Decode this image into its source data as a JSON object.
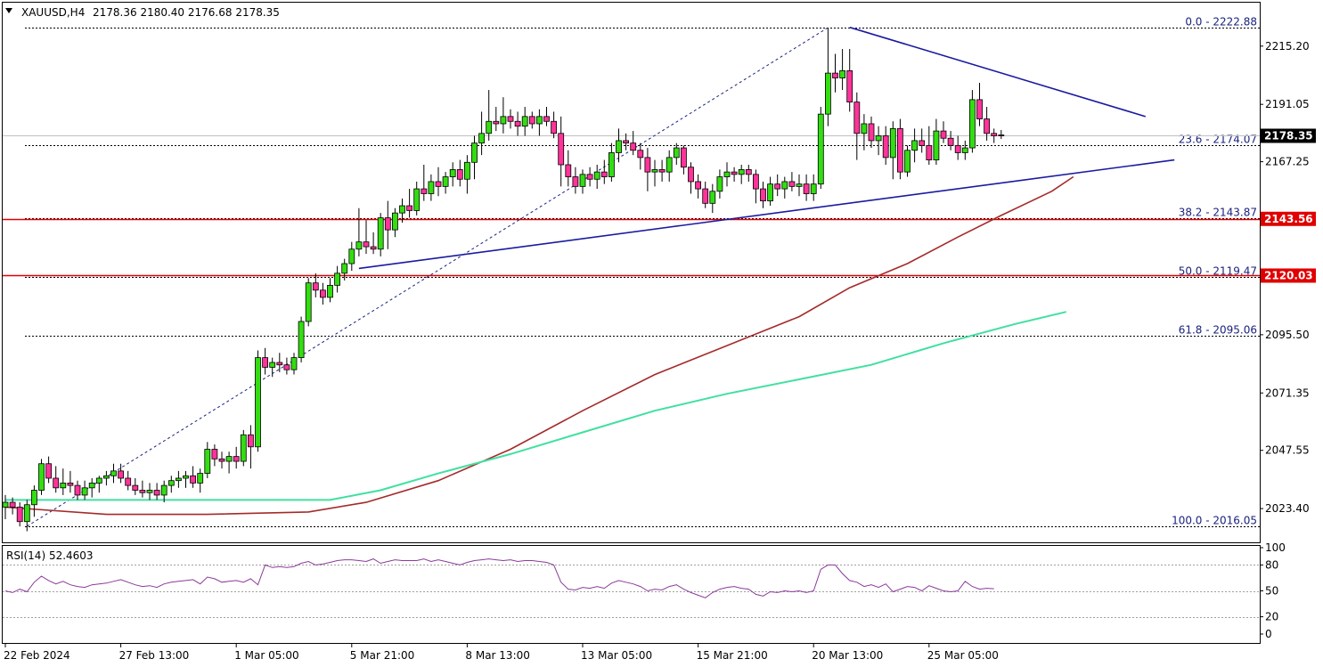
{
  "header": {
    "symbol": "XAUUSD,H4",
    "ohlc": "2178.36 2180.40 2176.68 2178.35",
    "dropdown_icon": "triangle-down-icon"
  },
  "chart_data": {
    "type": "candlestick",
    "symbol": "XAUUSD",
    "timeframe": "H4",
    "ylim": [
      2010,
      2232
    ],
    "y_ticks": [
      "2215.20",
      "2191.05",
      "2167.25",
      "2095.50",
      "2071.35",
      "2047.55",
      "2023.40"
    ],
    "x_ticks": [
      "22 Feb 2024",
      "27 Feb 13:00",
      "1 Mar 05:00",
      "5 Mar 21:00",
      "8 Mar 13:00",
      "13 Mar 05:00",
      "15 Mar 21:00",
      "20 Mar 13:00",
      "25 Mar 05:00"
    ],
    "current_price": "2178.35",
    "current_value": 2178.35,
    "resistance_levels": [
      {
        "label": "2143.56",
        "value": 2143.56
      },
      {
        "label": "2120.03",
        "value": 2120.03
      }
    ],
    "fib_levels": [
      {
        "label": "0.0 - 2222.88",
        "value": 2222.88
      },
      {
        "label": "23.6 - 2174.07",
        "value": 2174.07
      },
      {
        "label": "38.2 - 2143.87",
        "value": 2143.87
      },
      {
        "label": "50.0 - 2119.47",
        "value": 2119.47
      },
      {
        "label": "61.8 - 2095.06",
        "value": 2095.06
      },
      {
        "label": "100.0 - 2016.05",
        "value": 2016.05
      }
    ],
    "candles": [
      [
        2024,
        2029,
        2019,
        2026
      ],
      [
        2026,
        2028,
        2021,
        2024
      ],
      [
        2024,
        2026,
        2016,
        2018
      ],
      [
        2018,
        2027,
        2014,
        2025
      ],
      [
        2025,
        2033,
        2020,
        2031
      ],
      [
        2031,
        2044,
        2029,
        2042
      ],
      [
        2042,
        2045,
        2034,
        2036
      ],
      [
        2036,
        2041,
        2030,
        2032
      ],
      [
        2032,
        2040,
        2029,
        2034
      ],
      [
        2034,
        2039,
        2030,
        2033
      ],
      [
        2033,
        2035,
        2027,
        2029
      ],
      [
        2029,
        2035,
        2027,
        2032
      ],
      [
        2032,
        2036,
        2028,
        2034
      ],
      [
        2034,
        2037,
        2030,
        2036
      ],
      [
        2036,
        2039,
        2033,
        2037
      ],
      [
        2037,
        2042,
        2034,
        2039
      ],
      [
        2039,
        2042,
        2034,
        2036
      ],
      [
        2036,
        2039,
        2031,
        2033
      ],
      [
        2033,
        2036,
        2029,
        2031
      ],
      [
        2031,
        2035,
        2028,
        2030
      ],
      [
        2030,
        2034,
        2027,
        2031
      ],
      [
        2031,
        2034,
        2027,
        2029
      ],
      [
        2029,
        2035,
        2026,
        2033
      ],
      [
        2033,
        2037,
        2030,
        2035
      ],
      [
        2035,
        2039,
        2032,
        2036
      ],
      [
        2036,
        2039,
        2032,
        2037
      ],
      [
        2037,
        2041,
        2032,
        2034
      ],
      [
        2034,
        2040,
        2030,
        2038
      ],
      [
        2038,
        2051,
        2036,
        2048
      ],
      [
        2048,
        2050,
        2041,
        2044
      ],
      [
        2044,
        2047,
        2040,
        2043
      ],
      [
        2043,
        2047,
        2038,
        2045
      ],
      [
        2045,
        2049,
        2040,
        2043
      ],
      [
        2043,
        2056,
        2041,
        2054
      ],
      [
        2054,
        2058,
        2040,
        2049
      ],
      [
        2049,
        2089,
        2047,
        2086
      ],
      [
        2086,
        2090,
        2079,
        2082
      ],
      [
        2082,
        2086,
        2078,
        2084
      ],
      [
        2084,
        2088,
        2080,
        2083
      ],
      [
        2083,
        2086,
        2079,
        2081
      ],
      [
        2081,
        2088,
        2079,
        2086
      ],
      [
        2086,
        2103,
        2084,
        2101
      ],
      [
        2101,
        2119,
        2099,
        2117
      ],
      [
        2117,
        2121,
        2111,
        2114
      ],
      [
        2114,
        2117,
        2108,
        2111
      ],
      [
        2111,
        2119,
        2109,
        2116
      ],
      [
        2116,
        2124,
        2113,
        2121
      ],
      [
        2121,
        2127,
        2118,
        2125
      ],
      [
        2125,
        2134,
        2122,
        2131
      ],
      [
        2131,
        2148,
        2128,
        2134
      ],
      [
        2134,
        2143,
        2129,
        2132
      ],
      [
        2132,
        2138,
        2129,
        2131
      ],
      [
        2131,
        2146,
        2128,
        2144
      ],
      [
        2144,
        2151,
        2131,
        2139
      ],
      [
        2139,
        2148,
        2136,
        2146
      ],
      [
        2146,
        2152,
        2142,
        2149
      ],
      [
        2149,
        2156,
        2144,
        2147
      ],
      [
        2147,
        2159,
        2145,
        2156
      ],
      [
        2156,
        2166,
        2151,
        2154
      ],
      [
        2154,
        2162,
        2151,
        2159
      ],
      [
        2159,
        2165,
        2153,
        2157
      ],
      [
        2157,
        2163,
        2154,
        2161
      ],
      [
        2161,
        2167,
        2157,
        2164
      ],
      [
        2164,
        2168,
        2157,
        2160
      ],
      [
        2160,
        2170,
        2154,
        2167
      ],
      [
        2167,
        2178,
        2160,
        2175
      ],
      [
        2175,
        2188,
        2170,
        2179
      ],
      [
        2179,
        2197,
        2176,
        2184
      ],
      [
        2184,
        2190,
        2180,
        2183
      ],
      [
        2183,
        2194,
        2179,
        2186
      ],
      [
        2186,
        2189,
        2181,
        2184
      ],
      [
        2184,
        2188,
        2178,
        2182
      ],
      [
        2182,
        2190,
        2178,
        2186
      ],
      [
        2186,
        2188,
        2181,
        2183
      ],
      [
        2183,
        2189,
        2178,
        2186
      ],
      [
        2186,
        2190,
        2182,
        2184
      ],
      [
        2184,
        2188,
        2177,
        2179
      ],
      [
        2179,
        2186,
        2157,
        2166
      ],
      [
        2166,
        2172,
        2157,
        2161
      ],
      [
        2161,
        2165,
        2154,
        2157
      ],
      [
        2157,
        2164,
        2154,
        2162
      ],
      [
        2162,
        2165,
        2157,
        2160
      ],
      [
        2160,
        2166,
        2156,
        2163
      ],
      [
        2163,
        2168,
        2158,
        2161
      ],
      [
        2161,
        2175,
        2159,
        2171
      ],
      [
        2171,
        2181,
        2167,
        2176
      ],
      [
        2176,
        2179,
        2172,
        2175
      ],
      [
        2175,
        2180,
        2170,
        2172
      ],
      [
        2172,
        2175,
        2164,
        2169
      ],
      [
        2169,
        2173,
        2155,
        2163
      ],
      [
        2163,
        2168,
        2157,
        2164
      ],
      [
        2164,
        2168,
        2159,
        2163
      ],
      [
        2163,
        2172,
        2159,
        2169
      ],
      [
        2169,
        2175,
        2166,
        2173
      ],
      [
        2173,
        2174,
        2162,
        2165
      ],
      [
        2165,
        2167,
        2154,
        2159
      ],
      [
        2159,
        2162,
        2152,
        2156
      ],
      [
        2156,
        2159,
        2148,
        2150
      ],
      [
        2150,
        2158,
        2146,
        2155
      ],
      [
        2155,
        2164,
        2152,
        2161
      ],
      [
        2161,
        2167,
        2157,
        2163
      ],
      [
        2163,
        2165,
        2159,
        2162
      ],
      [
        2162,
        2166,
        2158,
        2164
      ],
      [
        2164,
        2166,
        2159,
        2162
      ],
      [
        2162,
        2164,
        2150,
        2156
      ],
      [
        2156,
        2159,
        2148,
        2151
      ],
      [
        2151,
        2161,
        2149,
        2158
      ],
      [
        2158,
        2162,
        2153,
        2156
      ],
      [
        2156,
        2161,
        2152,
        2159
      ],
      [
        2159,
        2163,
        2155,
        2157
      ],
      [
        2157,
        2162,
        2153,
        2158
      ],
      [
        2158,
        2162,
        2151,
        2154
      ],
      [
        2154,
        2162,
        2151,
        2158
      ],
      [
        2158,
        2190,
        2156,
        2187
      ],
      [
        2187,
        2222.88,
        2182,
        2204
      ],
      [
        2204,
        2212,
        2196,
        2202
      ],
      [
        2202,
        2214,
        2197,
        2205
      ],
      [
        2205,
        2214,
        2188,
        2192
      ],
      [
        2192,
        2196,
        2168,
        2179
      ],
      [
        2179,
        2187,
        2172,
        2183
      ],
      [
        2183,
        2186,
        2173,
        2176
      ],
      [
        2176,
        2182,
        2170,
        2178
      ],
      [
        2178,
        2182,
        2166,
        2169
      ],
      [
        2169,
        2184,
        2160,
        2181
      ],
      [
        2181,
        2185,
        2160,
        2163
      ],
      [
        2163,
        2174,
        2161,
        2172
      ],
      [
        2172,
        2181,
        2167,
        2176
      ],
      [
        2176,
        2181,
        2171,
        2174
      ],
      [
        2174,
        2182,
        2166,
        2168
      ],
      [
        2168,
        2185,
        2166,
        2180
      ],
      [
        2180,
        2184,
        2175,
        2177
      ],
      [
        2177,
        2180,
        2172,
        2174
      ],
      [
        2174,
        2178,
        2168,
        2171
      ],
      [
        2171,
        2176,
        2168,
        2173
      ],
      [
        2173,
        2197,
        2171,
        2193
      ],
      [
        2193,
        2200,
        2182,
        2185
      ],
      [
        2185,
        2190,
        2176,
        2179
      ],
      [
        2179,
        2181,
        2175,
        2178
      ],
      [
        2178.36,
        2180.4,
        2176.68,
        2178.35
      ]
    ],
    "ma_100": {
      "color": "#a52a2a",
      "points": [
        [
          0,
          2024
        ],
        [
          14,
          2021
        ],
        [
          28,
          2021
        ],
        [
          42,
          2022
        ],
        [
          50,
          2026
        ],
        [
          60,
          2035
        ],
        [
          70,
          2048
        ],
        [
          80,
          2064
        ],
        [
          90,
          2079
        ],
        [
          100,
          2091
        ],
        [
          110,
          2103
        ],
        [
          117,
          2115
        ],
        [
          125,
          2125
        ],
        [
          132,
          2136
        ],
        [
          138,
          2145
        ],
        [
          145,
          2155
        ],
        [
          148,
          2161
        ]
      ]
    },
    "ma_200": {
      "color": "#40e0a0",
      "points": [
        [
          0,
          2027
        ],
        [
          45,
          2027
        ],
        [
          52,
          2031
        ],
        [
          60,
          2038
        ],
        [
          70,
          2046
        ],
        [
          80,
          2055
        ],
        [
          90,
          2064
        ],
        [
          100,
          2071
        ],
        [
          110,
          2077
        ],
        [
          120,
          2083
        ],
        [
          130,
          2092
        ],
        [
          140,
          2100
        ],
        [
          147,
          2105
        ]
      ]
    },
    "trendlines": [
      {
        "name": "descending-resistance",
        "color": "#1a1aa0",
        "from": [
          117,
          2223
        ],
        "to": [
          158,
          2186
        ]
      },
      {
        "name": "ascending-support",
        "color": "#1a1aa0",
        "from": [
          49,
          2123
        ],
        "to": [
          162,
          2168
        ]
      }
    ],
    "rsi": {
      "label": "RSI(14) 52.4603",
      "levels": [
        "100",
        "80",
        "50",
        "20",
        "0"
      ],
      "ylim": [
        0,
        100
      ],
      "values": [
        50,
        48,
        52,
        49,
        60,
        67,
        62,
        58,
        61,
        57,
        55,
        54,
        57,
        58,
        59,
        61,
        63,
        60,
        57,
        55,
        56,
        54,
        58,
        60,
        61,
        62,
        63,
        58,
        66,
        64,
        60,
        61,
        62,
        60,
        64,
        57,
        80,
        77,
        78,
        77,
        78,
        82,
        84,
        80,
        81,
        83,
        85,
        86,
        86,
        85,
        84,
        87,
        82,
        84,
        86,
        85,
        85,
        85,
        87,
        84,
        86,
        84,
        82,
        80,
        83,
        85,
        86,
        87,
        86,
        85,
        86,
        84,
        85,
        85,
        84,
        83,
        80,
        60,
        52,
        51,
        54,
        53,
        55,
        53,
        59,
        62,
        60,
        58,
        55,
        50,
        52,
        51,
        55,
        57,
        52,
        48,
        45,
        42,
        48,
        52,
        54,
        55,
        53,
        52,
        46,
        44,
        49,
        48,
        50,
        49,
        50,
        48,
        50,
        75,
        80,
        80,
        70,
        62,
        60,
        55,
        57,
        54,
        58,
        49,
        52,
        55,
        54,
        50,
        56,
        53,
        50,
        49,
        50,
        61,
        55,
        52,
        53,
        52.46
      ]
    }
  }
}
